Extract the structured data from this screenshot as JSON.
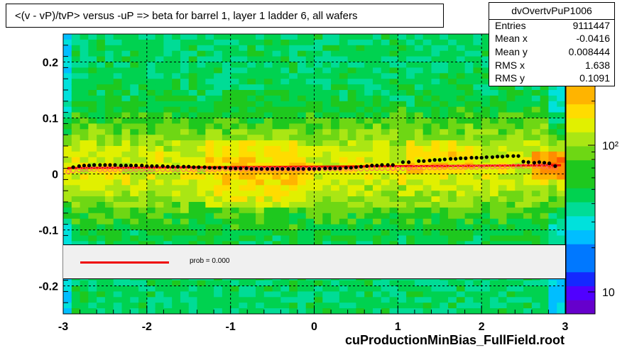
{
  "title": "<(v - vP)/tvP> versus  -uP => beta for barrel 1, layer 1 ladder 6, all wafers",
  "stats": {
    "name": "dvOvertvPuP1006",
    "rows": [
      {
        "label": "Entries",
        "value": "9111447"
      },
      {
        "label": "Mean x",
        "value": "-0.0416"
      },
      {
        "label": "Mean y",
        "value": "0.008444"
      },
      {
        "label": "RMS x",
        "value": "1.638"
      },
      {
        "label": "RMS y",
        "value": "0.1091"
      }
    ]
  },
  "legend": {
    "fit_label": "prob = 0.000"
  },
  "footer": "cuProductionMinBias_FullField.root",
  "colors": {
    "fit_line": "#ee0000",
    "profile_markers": "#000000",
    "open_markers": "#ff6666"
  },
  "chart_data": {
    "type": "heatmap",
    "xlim": [
      -3,
      3
    ],
    "ylim": [
      -0.25,
      0.25
    ],
    "x_ticks": [
      "-3",
      "-2",
      "-1",
      "0",
      "1",
      "2",
      "3"
    ],
    "y_ticks": [
      "-0.2",
      "-0.1",
      "0",
      "0.1",
      "0.2"
    ],
    "colorbar_ticks": [
      "10",
      "10²"
    ],
    "grid": true,
    "profile_black": {
      "x": [
        -2.88,
        -2.81,
        -2.75,
        -2.69,
        -2.63,
        -2.56,
        -2.5,
        -2.44,
        -2.38,
        -2.31,
        -2.25,
        -2.19,
        -2.13,
        -2.06,
        -2.0,
        -1.94,
        -1.88,
        -1.81,
        -1.75,
        -1.69,
        -1.63,
        -1.56,
        -1.5,
        -1.44,
        -1.38,
        -1.31,
        -1.25,
        -1.19,
        -1.13,
        -1.06,
        -1.0,
        -0.94,
        -0.88,
        -0.81,
        -0.75,
        -0.69,
        -0.63,
        -0.56,
        -0.5,
        -0.44,
        -0.38,
        -0.31,
        -0.25,
        -0.19,
        -0.13,
        -0.06,
        0.0,
        0.06,
        0.13,
        0.19,
        0.25,
        0.31,
        0.38,
        0.44,
        0.5,
        0.56,
        0.63,
        0.69,
        0.75,
        0.81,
        0.88,
        0.94,
        1.06,
        1.13,
        1.25,
        1.31,
        1.38,
        1.44,
        1.5,
        1.56,
        1.63,
        1.69,
        1.75,
        1.81,
        1.88,
        1.94,
        2.0,
        2.06,
        2.13,
        2.19,
        2.25,
        2.31,
        2.38,
        2.44,
        2.5,
        2.56,
        2.63,
        2.69,
        2.75,
        2.81,
        2.88
      ],
      "y": [
        0.012,
        0.014,
        0.015,
        0.015,
        0.016,
        0.016,
        0.016,
        0.016,
        0.016,
        0.015,
        0.015,
        0.015,
        0.015,
        0.015,
        0.014,
        0.014,
        0.014,
        0.014,
        0.013,
        0.013,
        0.013,
        0.013,
        0.013,
        0.012,
        0.012,
        0.012,
        0.011,
        0.011,
        0.011,
        0.011,
        0.01,
        0.01,
        0.01,
        0.01,
        0.009,
        0.009,
        0.009,
        0.009,
        0.009,
        0.009,
        0.009,
        0.009,
        0.009,
        0.009,
        0.009,
        0.009,
        0.009,
        0.009,
        0.01,
        0.01,
        0.01,
        0.01,
        0.011,
        0.011,
        0.012,
        0.013,
        0.014,
        0.015,
        0.015,
        0.016,
        0.016,
        0.016,
        0.021,
        0.021,
        0.023,
        0.023,
        0.024,
        0.025,
        0.025,
        0.026,
        0.027,
        0.027,
        0.028,
        0.028,
        0.029,
        0.029,
        0.029,
        0.03,
        0.03,
        0.031,
        0.031,
        0.032,
        0.032,
        0.032,
        0.022,
        0.021,
        0.02,
        0.021,
        0.02,
        0.019,
        0.014
      ]
    },
    "profile_open": {
      "x": [
        -2.94,
        -2.88,
        -2.81,
        -2.75,
        -2.69,
        -2.63,
        -2.56,
        -2.5,
        -2.44,
        -2.38,
        -2.31,
        -2.25,
        -2.19,
        -2.13,
        -2.06,
        -2.0,
        -1.94,
        -1.88,
        -1.81,
        -1.75,
        -1.69,
        -1.63,
        -1.56,
        -1.5,
        -1.44,
        -1.38,
        -1.31,
        -1.25,
        -1.19,
        -1.13,
        -1.06,
        -1.0,
        -0.94,
        -0.88,
        -0.81,
        -0.75,
        -0.69,
        -0.63,
        -0.56,
        -0.5,
        -0.44,
        -0.38,
        -0.31,
        -0.25,
        -0.19,
        -0.13,
        -0.06,
        0.0,
        0.06,
        0.13,
        0.19,
        0.25,
        0.31,
        0.38,
        0.44,
        0.5,
        0.56,
        0.63,
        0.69,
        0.75,
        0.81,
        0.88,
        0.94,
        1.0,
        1.06,
        1.13,
        1.19,
        1.25,
        1.31,
        1.38,
        1.44,
        1.5,
        1.56,
        1.63,
        1.69,
        1.75,
        1.81,
        1.88,
        1.94,
        2.0,
        2.06,
        2.13,
        2.19,
        2.25,
        2.31,
        2.38,
        2.44,
        2.5,
        2.56,
        2.63,
        2.69,
        2.75,
        2.81,
        2.88
      ],
      "y": [
        0.004,
        0.006,
        0.007,
        0.008,
        0.008,
        0.008,
        0.008,
        0.008,
        0.008,
        0.008,
        0.008,
        0.008,
        0.008,
        0.008,
        0.008,
        0.008,
        0.008,
        0.008,
        0.008,
        0.008,
        0.008,
        0.008,
        0.008,
        0.008,
        0.008,
        0.008,
        0.008,
        0.008,
        0.008,
        0.009,
        0.009,
        0.009,
        0.009,
        0.009,
        0.009,
        0.009,
        0.009,
        0.009,
        0.009,
        0.009,
        0.009,
        0.009,
        0.009,
        0.009,
        0.009,
        0.009,
        0.009,
        0.009,
        0.009,
        0.009,
        0.009,
        0.009,
        0.009,
        0.009,
        0.009,
        0.009,
        0.009,
        0.009,
        0.01,
        0.01,
        0.01,
        0.01,
        0.01,
        0.01,
        0.01,
        0.01,
        0.011,
        0.011,
        0.011,
        0.011,
        0.011,
        0.011,
        0.012,
        0.012,
        0.012,
        0.012,
        0.012,
        0.012,
        0.012,
        0.013,
        0.013,
        0.013,
        0.013,
        0.013,
        0.013,
        0.014,
        0.014,
        0.014,
        0.014,
        0.014,
        0.014,
        0.013,
        0.012,
        0.011
      ]
    },
    "fit_line": {
      "x": [
        -2.95,
        2.95
      ],
      "y": [
        0.0105,
        0.0155
      ]
    }
  }
}
